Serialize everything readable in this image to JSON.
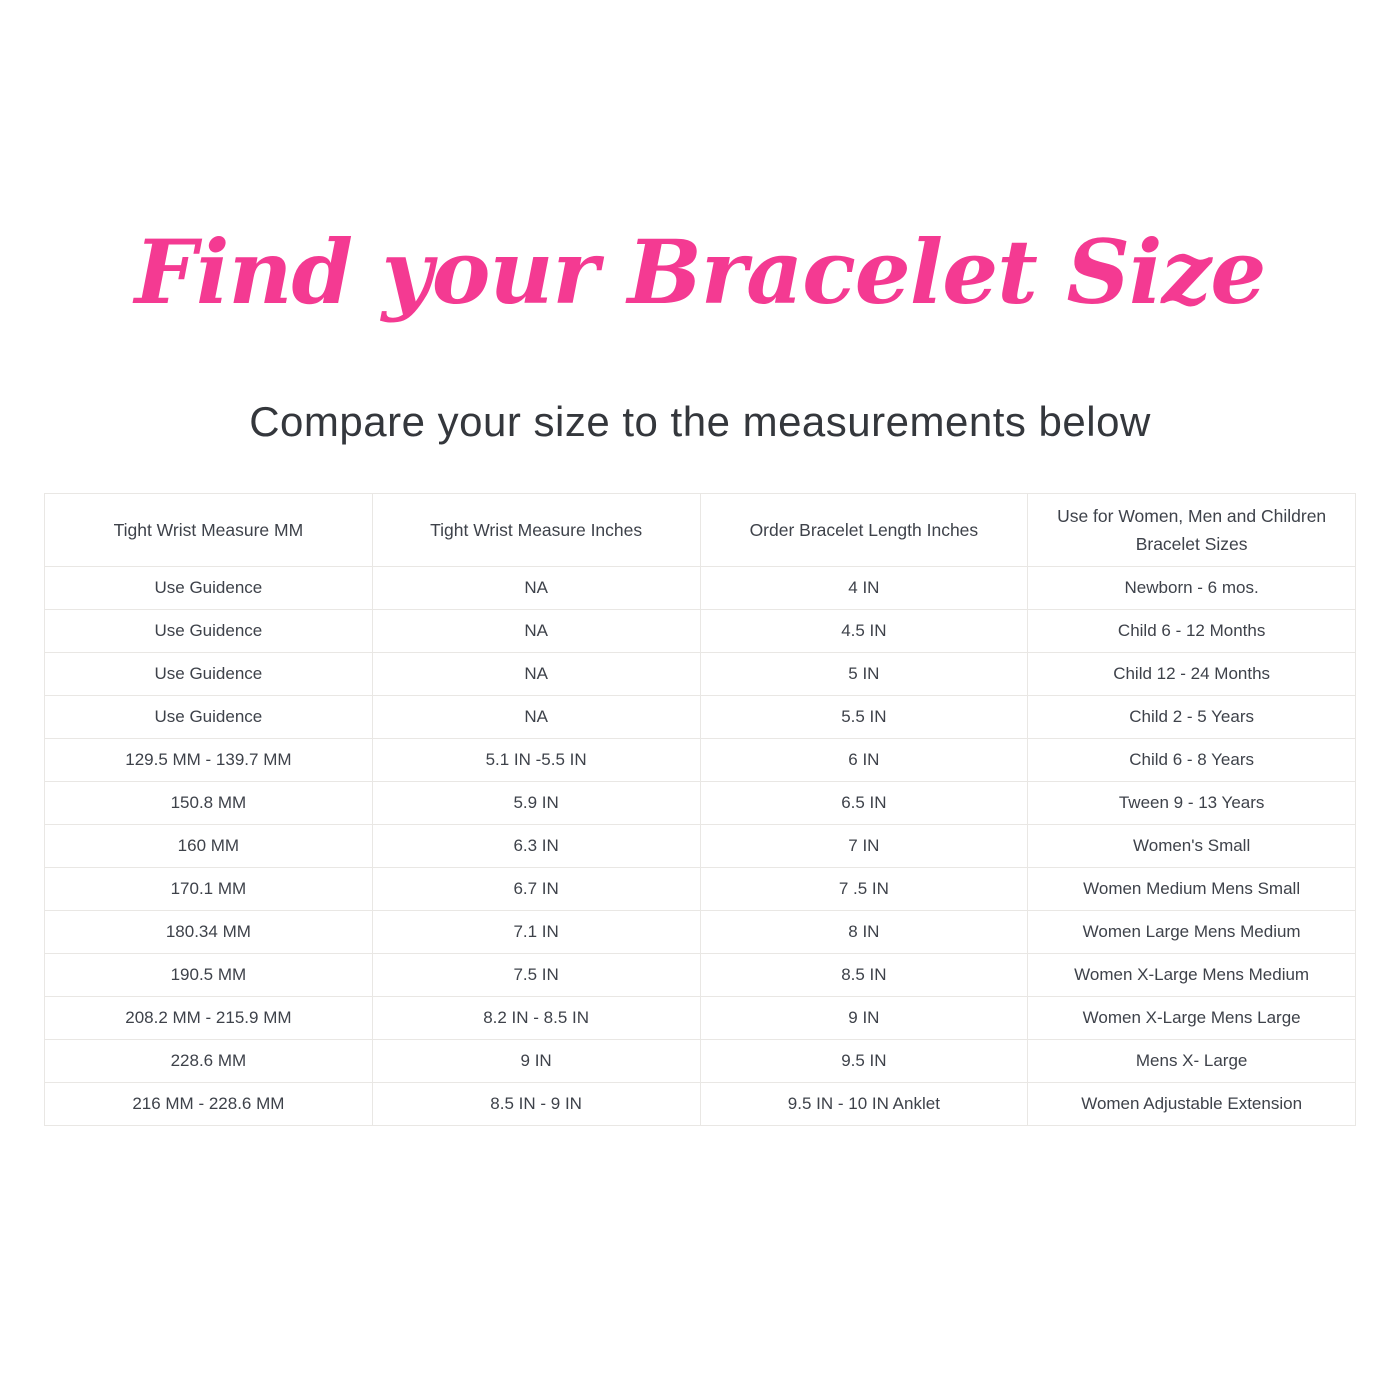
{
  "page": {
    "title": "Find your Bracelet Size",
    "subtitle": "Compare your size to the measurements below"
  },
  "colors": {
    "title_pink": "#F43A92",
    "text_dark": "#3E424A",
    "table_border": "#E9E7E4",
    "background": "#FFFFFF"
  },
  "table": {
    "headers": [
      "Tight Wrist Measure MM",
      "Tight Wrist Measure Inches",
      "Order Bracelet Length Inches",
      "Use for Women, Men and Children Bracelet Sizes"
    ],
    "rows": [
      [
        "Use Guidence",
        "NA",
        "4 IN",
        "Newborn - 6 mos."
      ],
      [
        "Use Guidence",
        "NA",
        "4.5 IN",
        "Child 6 - 12 Months"
      ],
      [
        "Use Guidence",
        "NA",
        "5 IN",
        "Child 12 - 24 Months"
      ],
      [
        "Use Guidence",
        "NA",
        "5.5 IN",
        "Child 2 - 5 Years"
      ],
      [
        "129.5 MM - 139.7 MM",
        "5.1 IN -5.5 IN",
        "6 IN",
        "Child 6 - 8 Years"
      ],
      [
        "150.8 MM",
        "5.9 IN",
        "6.5 IN",
        "Tween 9 - 13 Years"
      ],
      [
        "160 MM",
        "6.3 IN",
        "7 IN",
        "Women's Small"
      ],
      [
        "170.1 MM",
        "6.7 IN",
        "7 .5 IN",
        "Women Medium Mens Small"
      ],
      [
        "180.34 MM",
        "7.1 IN",
        "8 IN",
        "Women Large Mens Medium"
      ],
      [
        "190.5 MM",
        "7.5 IN",
        "8.5 IN",
        "Women X-Large Mens Medium"
      ],
      [
        "208.2 MM - 215.9 MM",
        "8.2 IN - 8.5 IN",
        "9 IN",
        "Women X-Large Mens Large"
      ],
      [
        "228.6 MM",
        "9 IN",
        "9.5 IN",
        "Mens X- Large"
      ],
      [
        "216 MM - 228.6 MM",
        "8.5 IN - 9 IN",
        "9.5 IN - 10 IN Anklet",
        "Women Adjustable Extension"
      ]
    ]
  }
}
